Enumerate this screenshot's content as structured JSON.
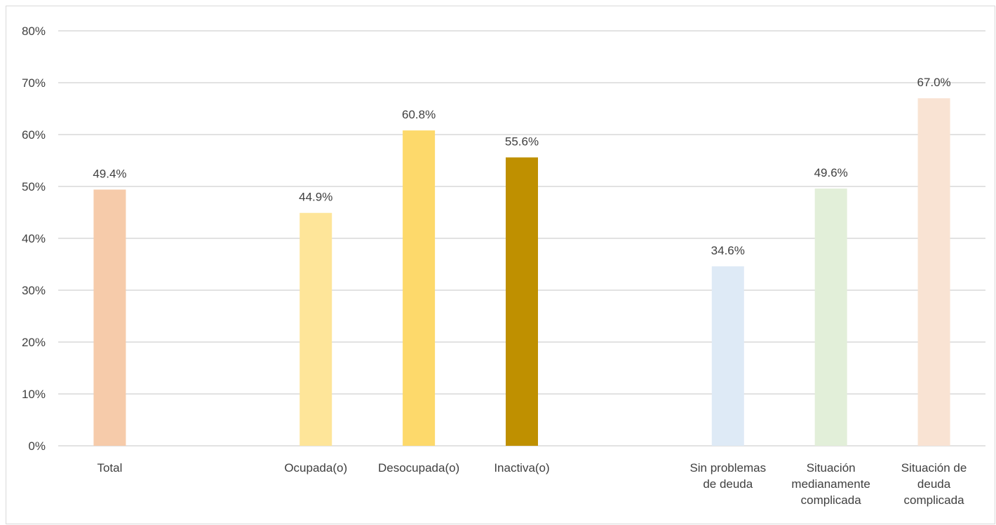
{
  "chart_data": {
    "type": "bar",
    "title": "",
    "xlabel": "",
    "ylabel": "",
    "ylim": [
      0,
      80
    ],
    "y_ticks": [
      "0%",
      "10%",
      "20%",
      "30%",
      "40%",
      "50%",
      "60%",
      "70%",
      "80%"
    ],
    "y_tick_values": [
      0,
      10,
      20,
      30,
      40,
      50,
      60,
      70,
      80
    ],
    "grid": true,
    "legend": "none",
    "categories": [
      {
        "label": [
          "Total"
        ],
        "value": 49.4,
        "value_label": "49.4%",
        "color": "#F6CBAA"
      },
      {
        "label": [
          ""
        ],
        "value": null,
        "value_label": "",
        "color": ""
      },
      {
        "label": [
          "Ocupada(o)"
        ],
        "value": 44.9,
        "value_label": "44.9%",
        "color": "#FEE599"
      },
      {
        "label": [
          "Desocupada(o)"
        ],
        "value": 60.8,
        "value_label": "60.8%",
        "color": "#FDD96B"
      },
      {
        "label": [
          "Inactiva(o)"
        ],
        "value": 55.6,
        "value_label": "55.6%",
        "color": "#BF9000"
      },
      {
        "label": [
          ""
        ],
        "value": null,
        "value_label": "",
        "color": ""
      },
      {
        "label": [
          "Sin problemas",
          "de deuda"
        ],
        "value": 34.6,
        "value_label": "34.6%",
        "color": "#DEEAF6"
      },
      {
        "label": [
          "Situación",
          "medianamente",
          "complicada"
        ],
        "value": 49.6,
        "value_label": "49.6%",
        "color": "#E2EFD9"
      },
      {
        "label": [
          "Situación de",
          "deuda",
          "complicada"
        ],
        "value": 67.0,
        "value_label": "67.0%",
        "color": "#F9E3D3"
      }
    ]
  }
}
